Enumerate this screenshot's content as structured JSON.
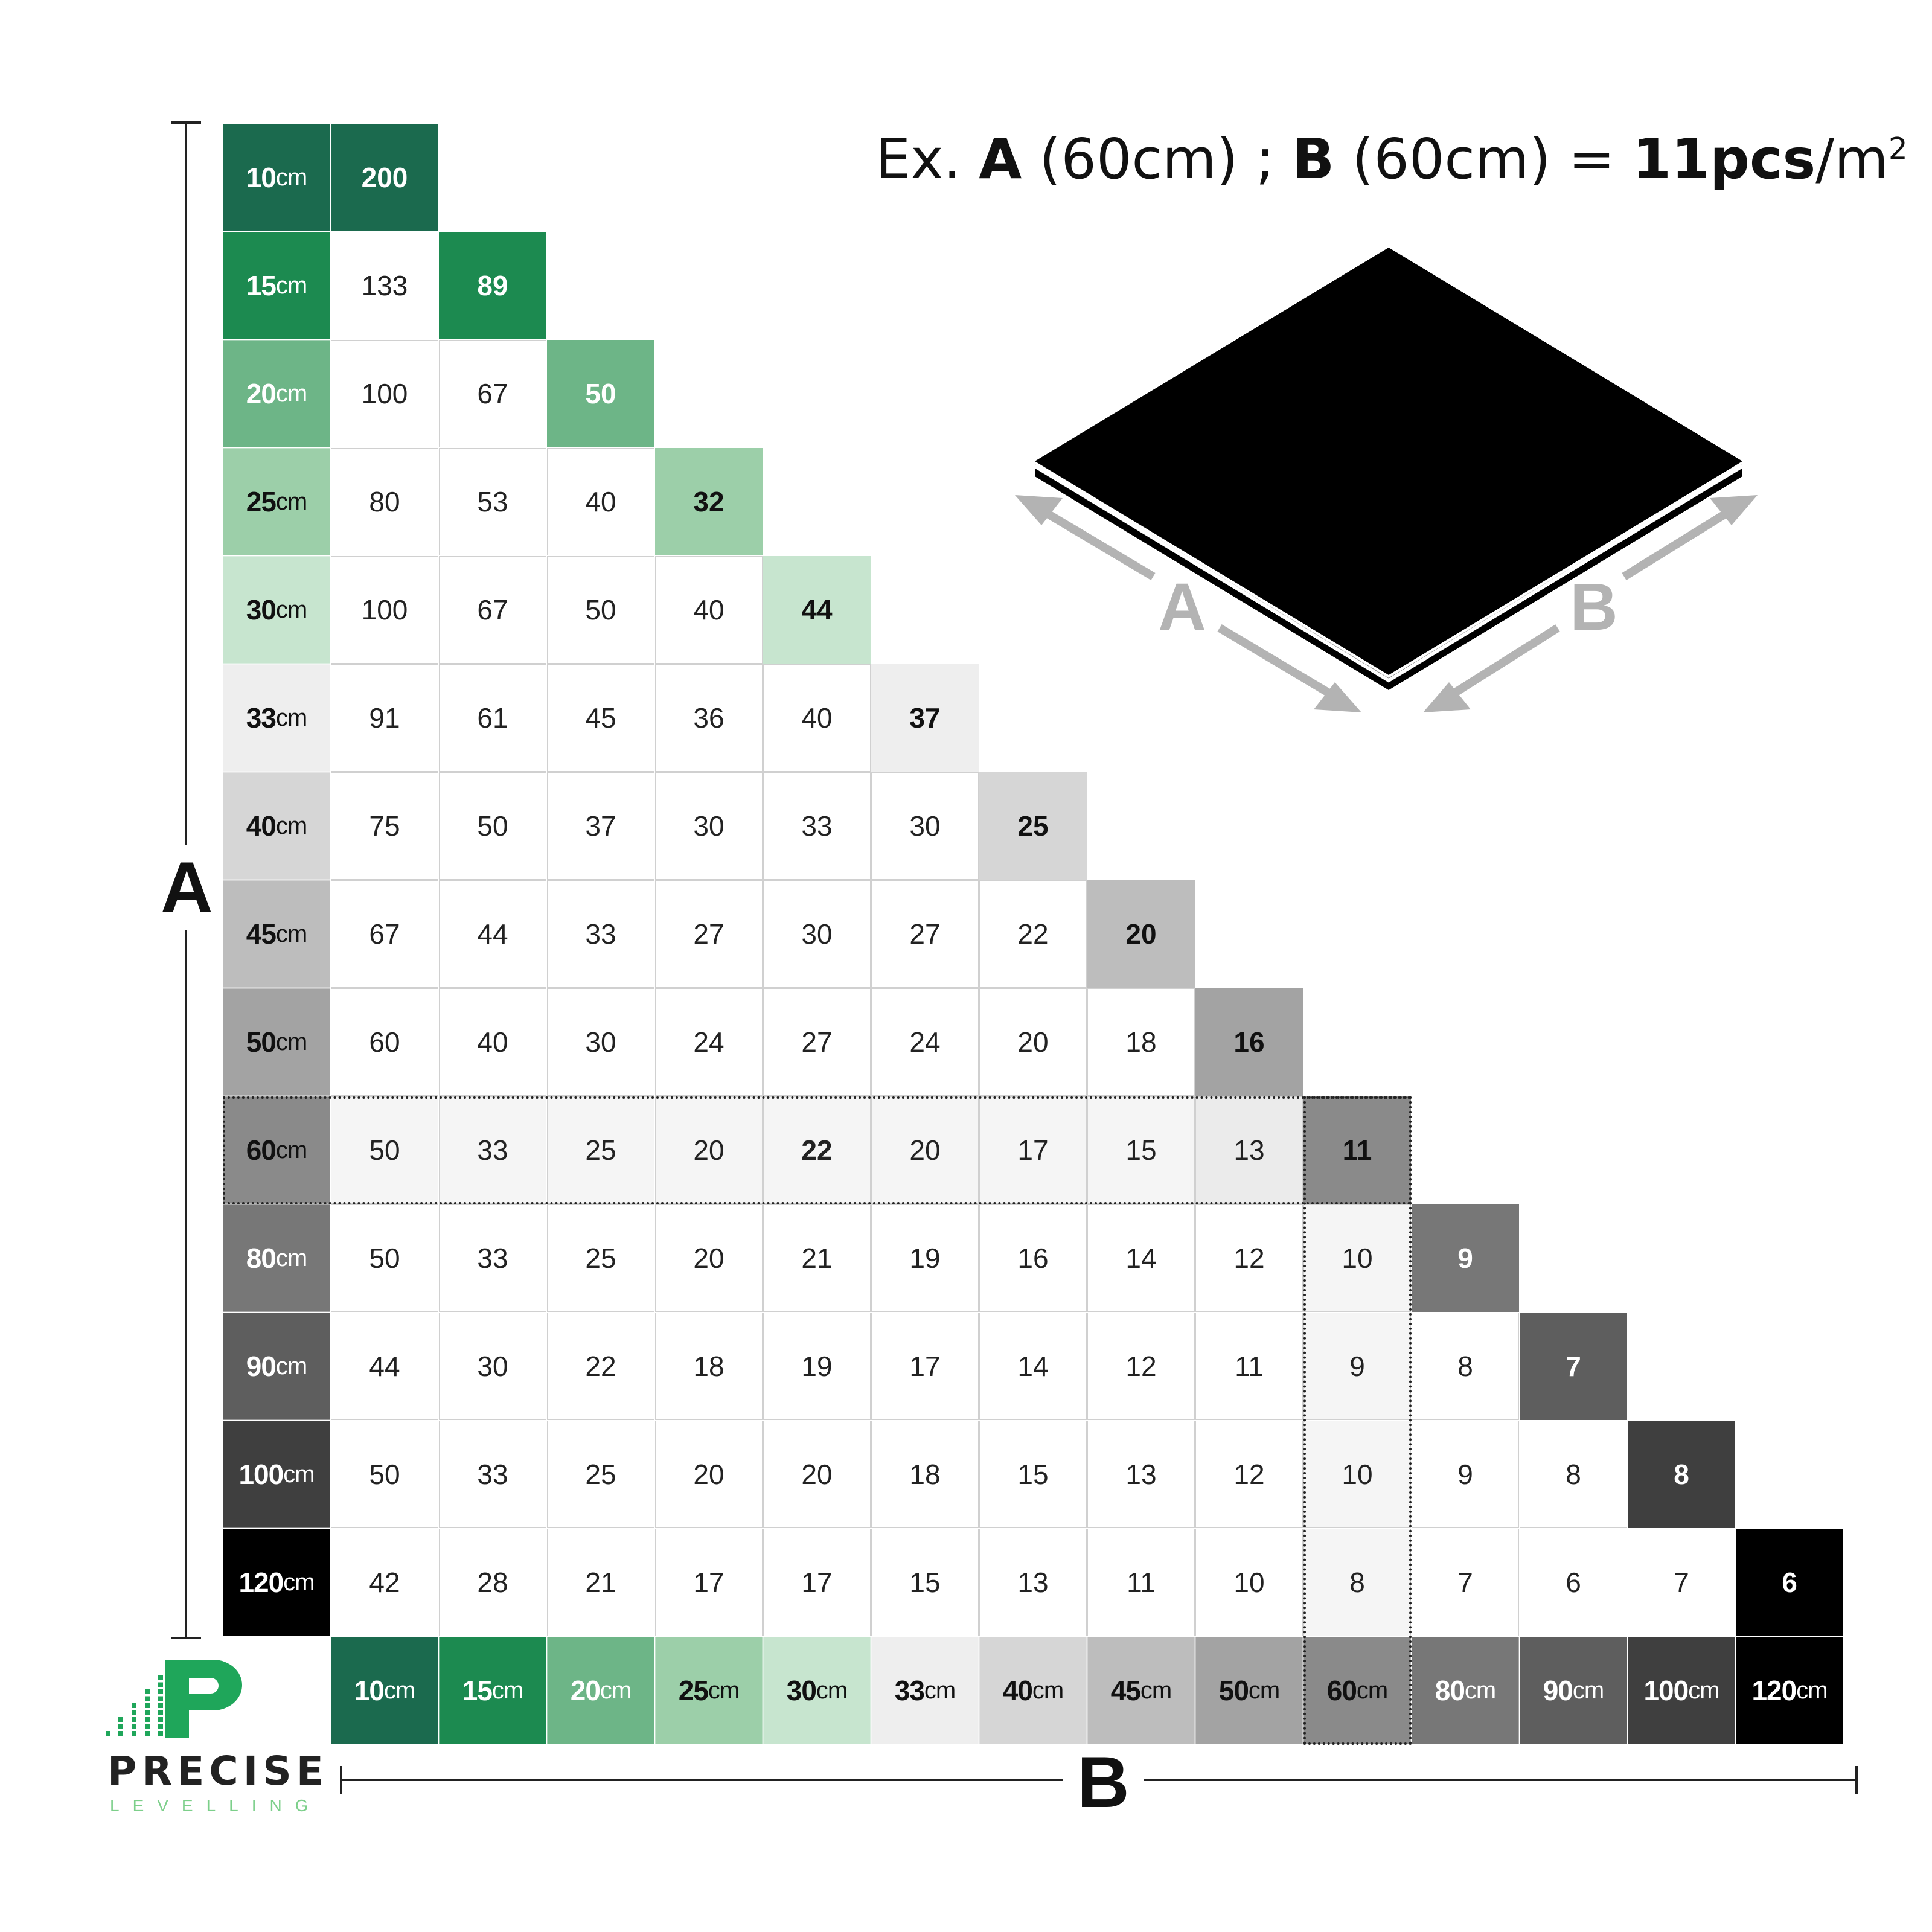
{
  "example": {
    "prefix": "Ex.",
    "a_label": "A",
    "a_value": "(60cm) ;",
    "b_label": "B",
    "b_value": "(60cm) =",
    "result": "11pcs",
    "unit": "/m",
    "unit_sup": "2"
  },
  "axes": {
    "vertical": "A",
    "horizontal": "B"
  },
  "illustration": {
    "label_a": "A",
    "label_b": "B",
    "tile_color": "#000000",
    "arrow_color": "#b3b3b3"
  },
  "unit": "cm",
  "sizes": [
    {
      "value": "10",
      "color": "#1b6a4e",
      "text": "#ffffff"
    },
    {
      "value": "15",
      "color": "#1c8a50",
      "text": "#ffffff"
    },
    {
      "value": "20",
      "color": "#6db587",
      "text": "#ffffff"
    },
    {
      "value": "25",
      "color": "#9ccfa9",
      "text": "#111111"
    },
    {
      "value": "30",
      "color": "#c7e5cf",
      "text": "#111111"
    },
    {
      "value": "33",
      "color": "#eeeeee",
      "text": "#111111"
    },
    {
      "value": "40",
      "color": "#d6d6d6",
      "text": "#111111"
    },
    {
      "value": "45",
      "color": "#bdbdbd",
      "text": "#111111"
    },
    {
      "value": "50",
      "color": "#a3a3a3",
      "text": "#111111"
    },
    {
      "value": "60",
      "color": "#8a8a8a",
      "text": "#111111"
    },
    {
      "value": "80",
      "color": "#777777",
      "text": "#ffffff"
    },
    {
      "value": "90",
      "color": "#5e5e5e",
      "text": "#ffffff"
    },
    {
      "value": "100",
      "color": "#3f3f3f",
      "text": "#ffffff"
    },
    {
      "value": "120",
      "color": "#000000",
      "text": "#ffffff"
    }
  ],
  "table": [
    [
      200
    ],
    [
      133,
      89
    ],
    [
      100,
      67,
      50
    ],
    [
      80,
      53,
      40,
      32
    ],
    [
      100,
      67,
      50,
      40,
      44
    ],
    [
      91,
      61,
      45,
      36,
      40,
      37
    ],
    [
      75,
      50,
      37,
      30,
      33,
      30,
      25
    ],
    [
      67,
      44,
      33,
      27,
      30,
      27,
      22,
      20
    ],
    [
      60,
      40,
      30,
      24,
      27,
      24,
      20,
      18,
      16
    ],
    [
      50,
      33,
      25,
      20,
      22,
      20,
      17,
      15,
      13,
      11
    ],
    [
      50,
      33,
      25,
      20,
      21,
      19,
      16,
      14,
      12,
      10,
      9
    ],
    [
      44,
      30,
      22,
      18,
      19,
      17,
      14,
      12,
      11,
      9,
      8,
      7
    ],
    [
      50,
      33,
      25,
      20,
      20,
      18,
      15,
      13,
      12,
      10,
      9,
      8,
      8
    ],
    [
      42,
      28,
      21,
      17,
      17,
      15,
      13,
      11,
      10,
      8,
      7,
      6,
      7,
      6
    ]
  ],
  "highlight": {
    "size": "60",
    "example_value": "22"
  },
  "logo": {
    "name": "PRECISE",
    "sub": "LEVELLING",
    "color": "#1fa65a"
  }
}
